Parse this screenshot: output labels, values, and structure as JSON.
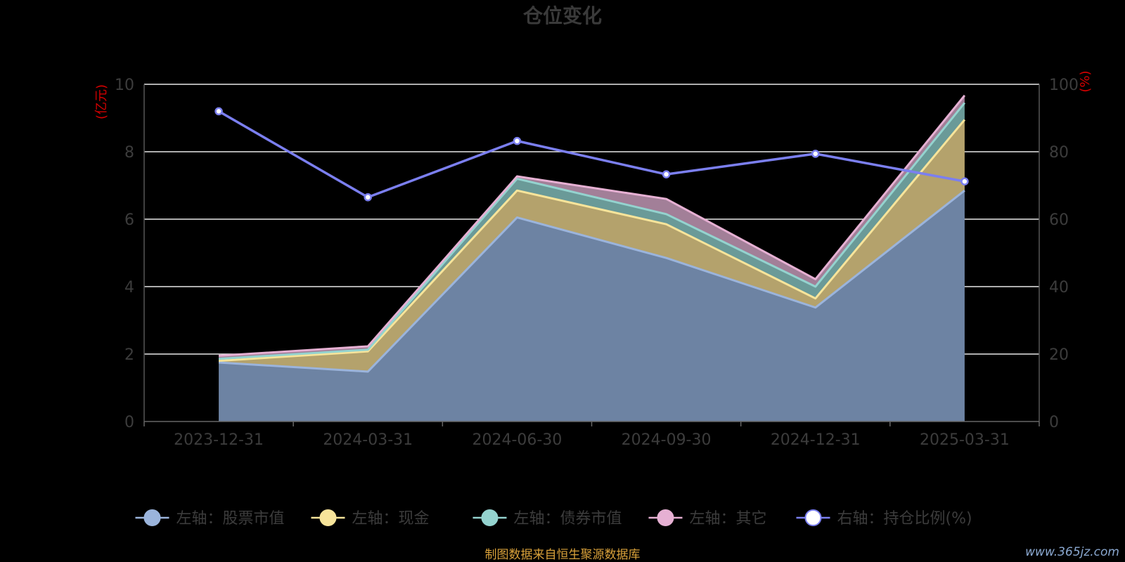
{
  "source_note": "制图数据来自恒生聚源数据库",
  "watermark": "www.365jz.com",
  "colors": {
    "background": "#000000",
    "stock": "#9bb4dc",
    "cash": "#f7e49a",
    "bond": "#94d3cf",
    "other": "#e6b0d3",
    "ratio": "#7b7ff0"
  },
  "chart_data": {
    "type": "area",
    "title": "仓位变化",
    "left_axis_unit": "(亿元)",
    "right_axis_unit": "(%)",
    "categories": [
      "2023-12-31",
      "2024-03-31",
      "2024-06-30",
      "2024-09-30",
      "2024-12-31",
      "2025-03-31"
    ],
    "left_ylim": [
      0,
      10
    ],
    "left_ticks": [
      "0",
      "2",
      "4",
      "6",
      "8",
      "10"
    ],
    "right_ylim": [
      0,
      100
    ],
    "right_ticks": [
      "0",
      "20",
      "40",
      "60",
      "80",
      "100"
    ],
    "stacked": true,
    "grid": true,
    "legend_position": "bottom",
    "series": [
      {
        "name": "左轴：股票市值",
        "axis": "left",
        "kind": "area",
        "values": [
          1.75,
          1.48,
          6.05,
          4.85,
          3.38,
          6.85
        ]
      },
      {
        "name": "左轴：现金",
        "axis": "left",
        "kind": "area",
        "values": [
          0.05,
          0.6,
          0.8,
          1.0,
          0.27,
          2.1
        ]
      },
      {
        "name": "左轴：债券市值",
        "axis": "left",
        "kind": "area",
        "values": [
          0.06,
          0.05,
          0.35,
          0.3,
          0.35,
          0.5
        ]
      },
      {
        "name": "左轴：其它",
        "axis": "left",
        "kind": "area",
        "values": [
          0.09,
          0.1,
          0.07,
          0.45,
          0.22,
          0.22
        ]
      },
      {
        "name": "右轴：持仓比例(%)",
        "axis": "right",
        "kind": "line",
        "values": [
          92.0,
          66.5,
          83.2,
          73.3,
          79.4,
          71.2
        ]
      }
    ]
  }
}
